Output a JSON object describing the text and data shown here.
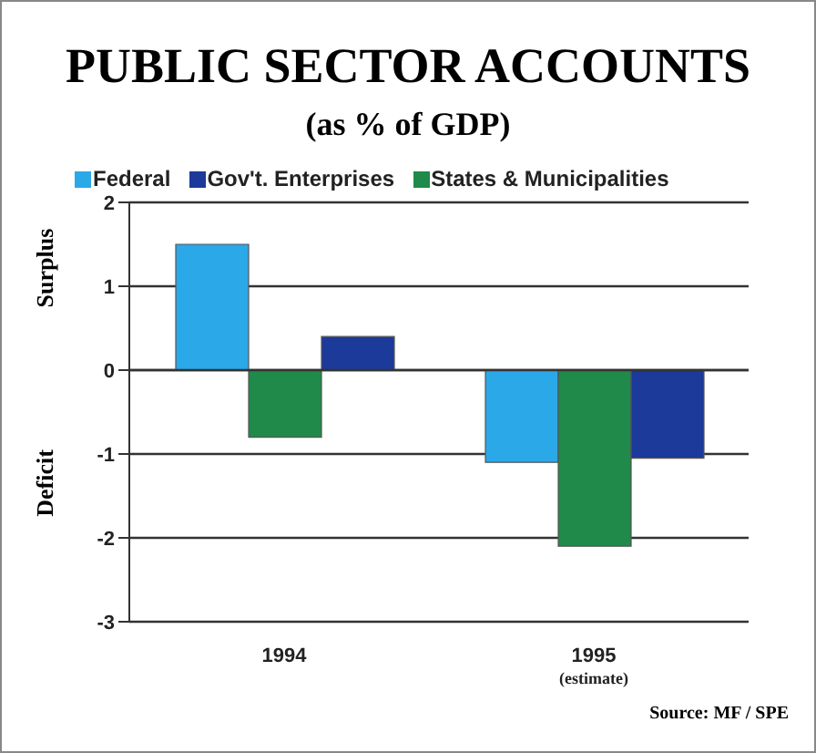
{
  "chart_data": {
    "type": "bar",
    "title": "PUBLIC SECTOR ACCOUNTS",
    "subtitle": "(as % of GDP)",
    "categories": [
      "1994",
      "1995\n(estimate)"
    ],
    "series": [
      {
        "name": "Federal",
        "color": "#2aa8e8",
        "values": [
          1.5,
          -1.1
        ]
      },
      {
        "name": "States & Municipalities",
        "color": "#1f8a4a",
        "values": [
          -0.8,
          -2.1
        ]
      },
      {
        "name": "Gov't. Enterprises",
        "color": "#1b3a9a",
        "values": [
          0.4,
          -1.05
        ]
      }
    ],
    "ylim": [
      -3,
      2
    ],
    "yticks": [
      -3,
      -2,
      -1,
      0,
      1,
      2
    ],
    "grid": "y",
    "legend": "top",
    "annotations": [
      "Surplus",
      "Deficit",
      "Source: MF / SPE"
    ]
  }
}
